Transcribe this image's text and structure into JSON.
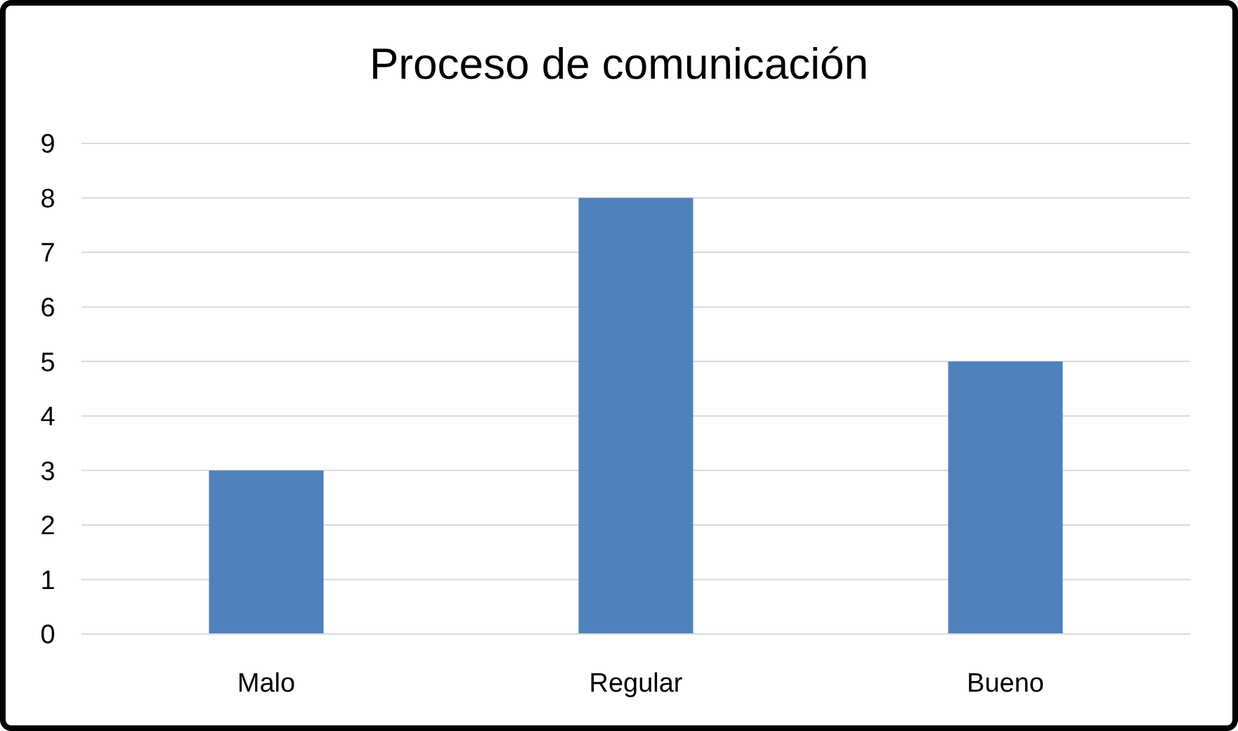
{
  "chart_data": {
    "type": "bar",
    "title": "Proceso de comunicación",
    "categories": [
      "Malo",
      "Regular",
      "Bueno"
    ],
    "values": [
      3,
      8,
      5
    ],
    "color": "#4f81bd",
    "ylim": [
      0,
      9
    ],
    "yticks": [
      0,
      1,
      2,
      3,
      4,
      5,
      6,
      7,
      8,
      9
    ],
    "grid": "y"
  }
}
